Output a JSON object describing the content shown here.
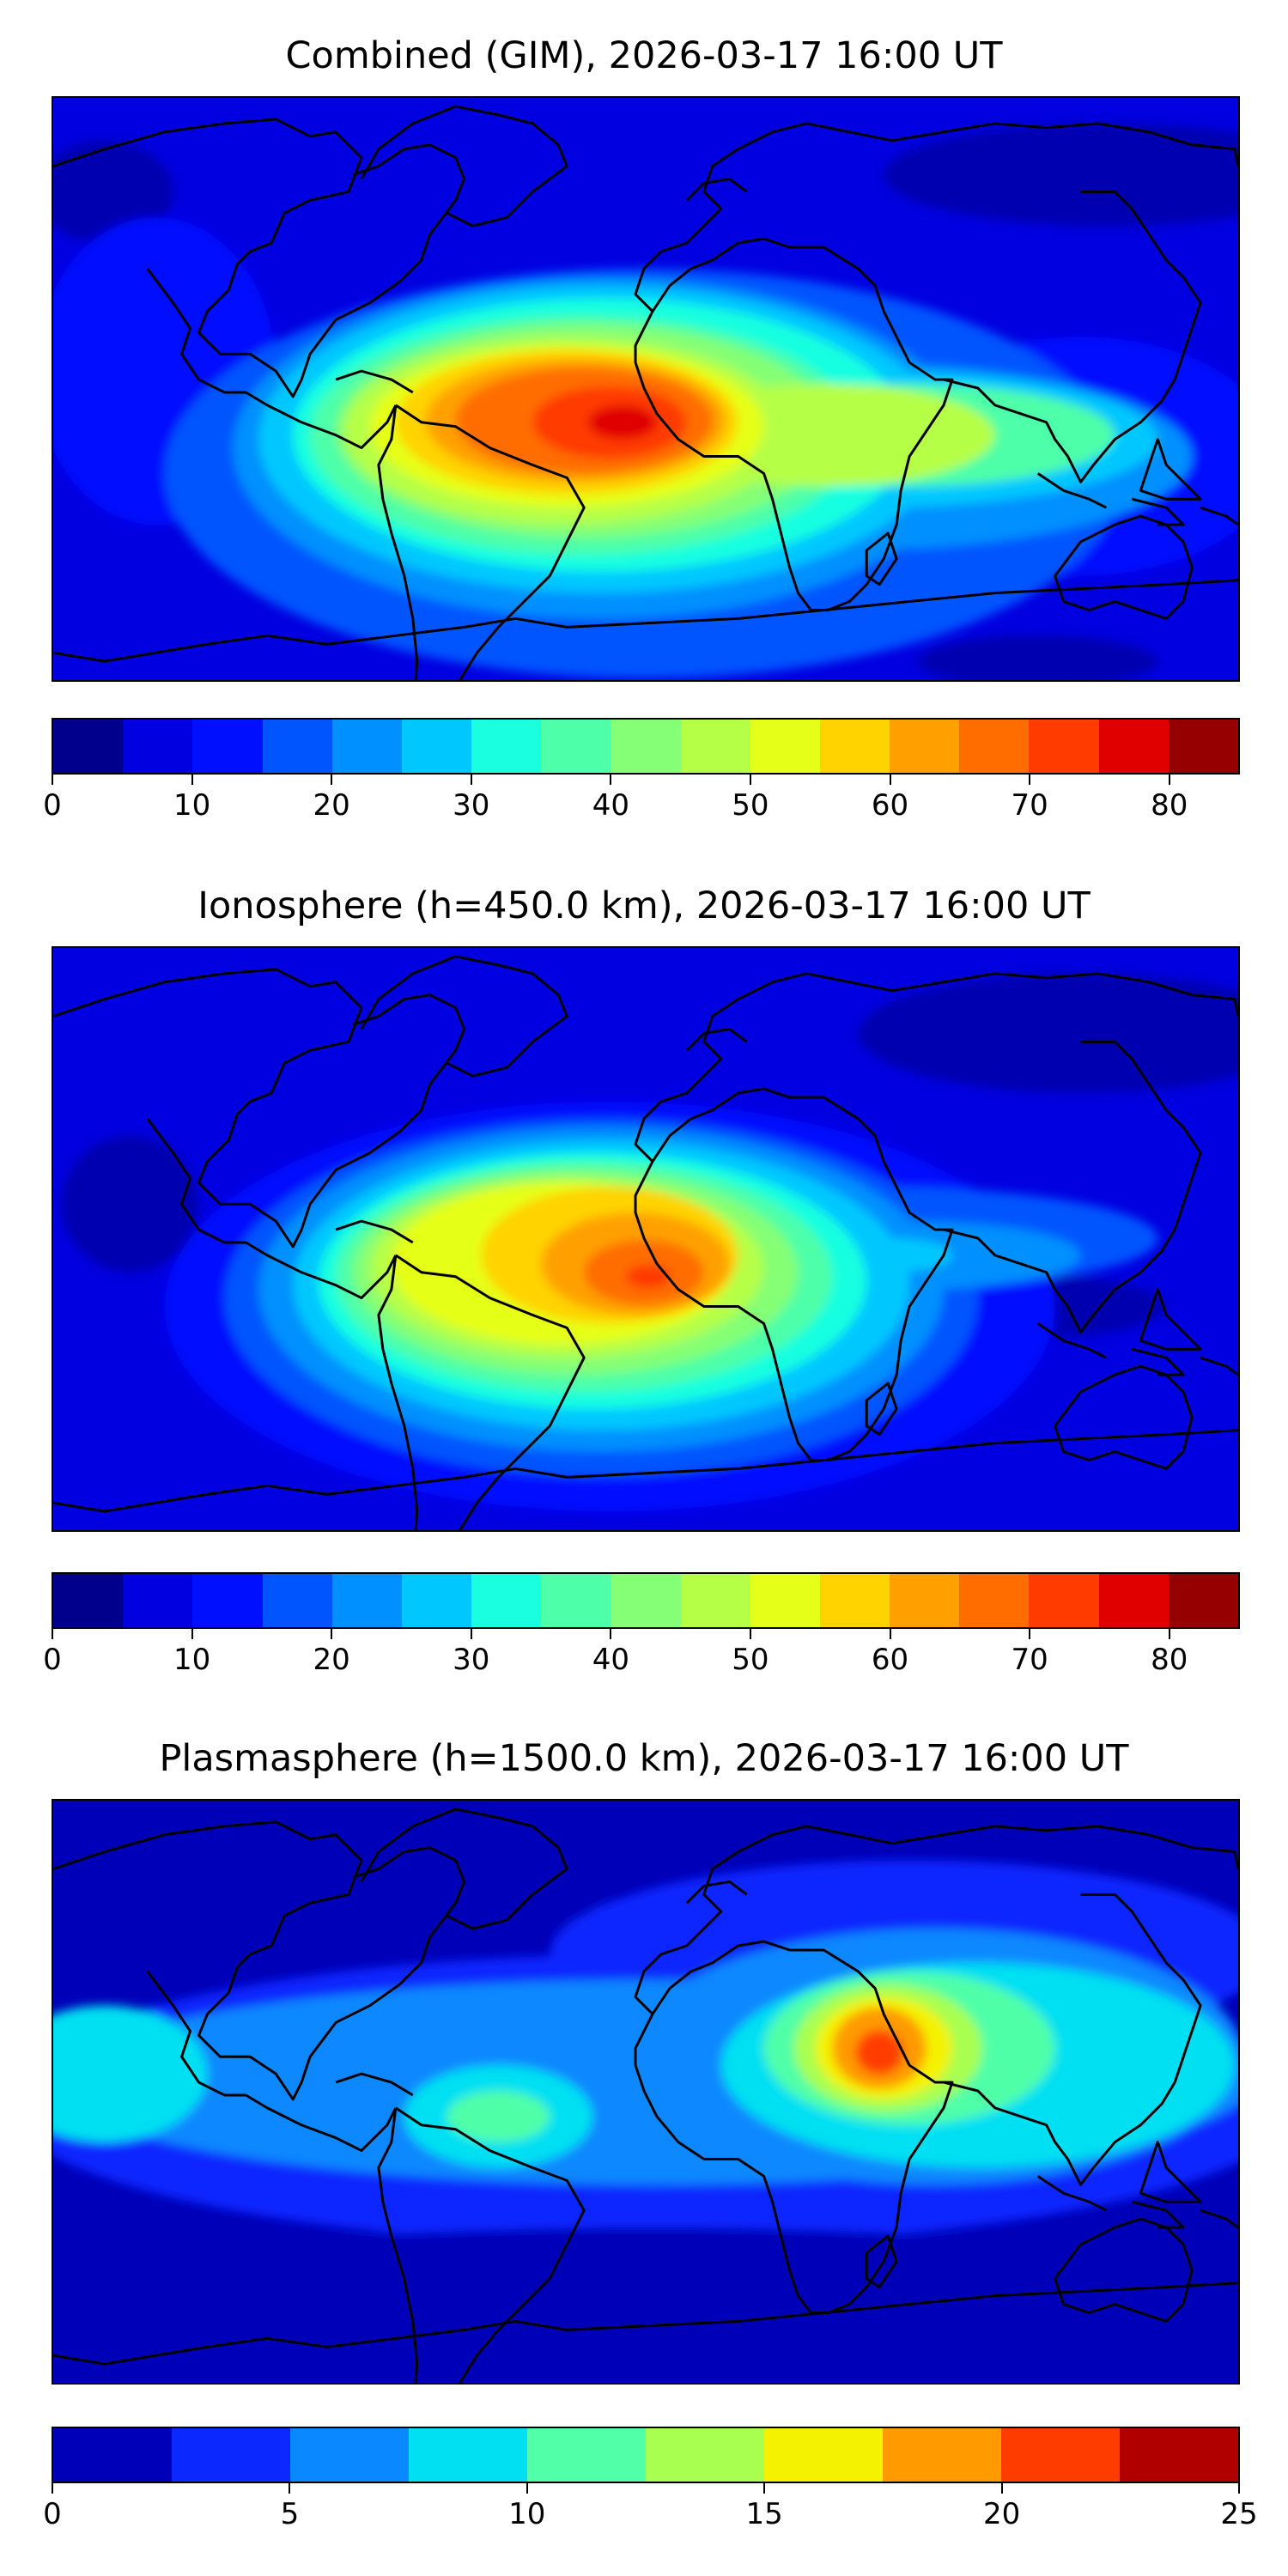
{
  "panels": [
    {
      "title": "Combined (GIM), 2026-03-17 16:00 UT",
      "colorbar": {
        "min": 0,
        "max": 85,
        "ticks": [
          "0",
          "10",
          "20",
          "30",
          "40",
          "50",
          "60",
          "70",
          "80"
        ],
        "tick_values": [
          0,
          10,
          20,
          30,
          40,
          50,
          60,
          70,
          80
        ],
        "colors": [
          "#00008c",
          "#0000e0",
          "#0010ff",
          "#0055ff",
          "#0090ff",
          "#00c8ff",
          "#19ffe0",
          "#4dffa8",
          "#85ff75",
          "#b6ff47",
          "#e6ff19",
          "#ffd300",
          "#ffa000",
          "#ff6d00",
          "#ff3b00",
          "#e00000",
          "#960000"
        ]
      }
    },
    {
      "title": "Ionosphere  (h=450.0 km), 2026-03-17 16:00 UT",
      "colorbar": {
        "min": 0,
        "max": 85,
        "ticks": [
          "0",
          "10",
          "20",
          "30",
          "40",
          "50",
          "60",
          "70",
          "80"
        ],
        "tick_values": [
          0,
          10,
          20,
          30,
          40,
          50,
          60,
          70,
          80
        ],
        "colors": [
          "#00008c",
          "#0000e0",
          "#0010ff",
          "#0055ff",
          "#0090ff",
          "#00c8ff",
          "#19ffe0",
          "#4dffa8",
          "#85ff75",
          "#b6ff47",
          "#e6ff19",
          "#ffd300",
          "#ffa000",
          "#ff6d00",
          "#ff3b00",
          "#e00000",
          "#960000"
        ]
      }
    },
    {
      "title": "Plasmasphere (h=1500.0 km), 2026-03-17 16:00 UT",
      "colorbar": {
        "min": 0,
        "max": 25,
        "ticks": [
          "0",
          "5",
          "10",
          "15",
          "20",
          "25"
        ],
        "tick_values": [
          0,
          5,
          10,
          15,
          20,
          25
        ],
        "colors": [
          "#0000b8",
          "#0a28ff",
          "#0a88ff",
          "#00e0f2",
          "#50ffa8",
          "#a8ff50",
          "#f4f200",
          "#ff9a00",
          "#ff3c00",
          "#b00000"
        ]
      }
    }
  ]
}
